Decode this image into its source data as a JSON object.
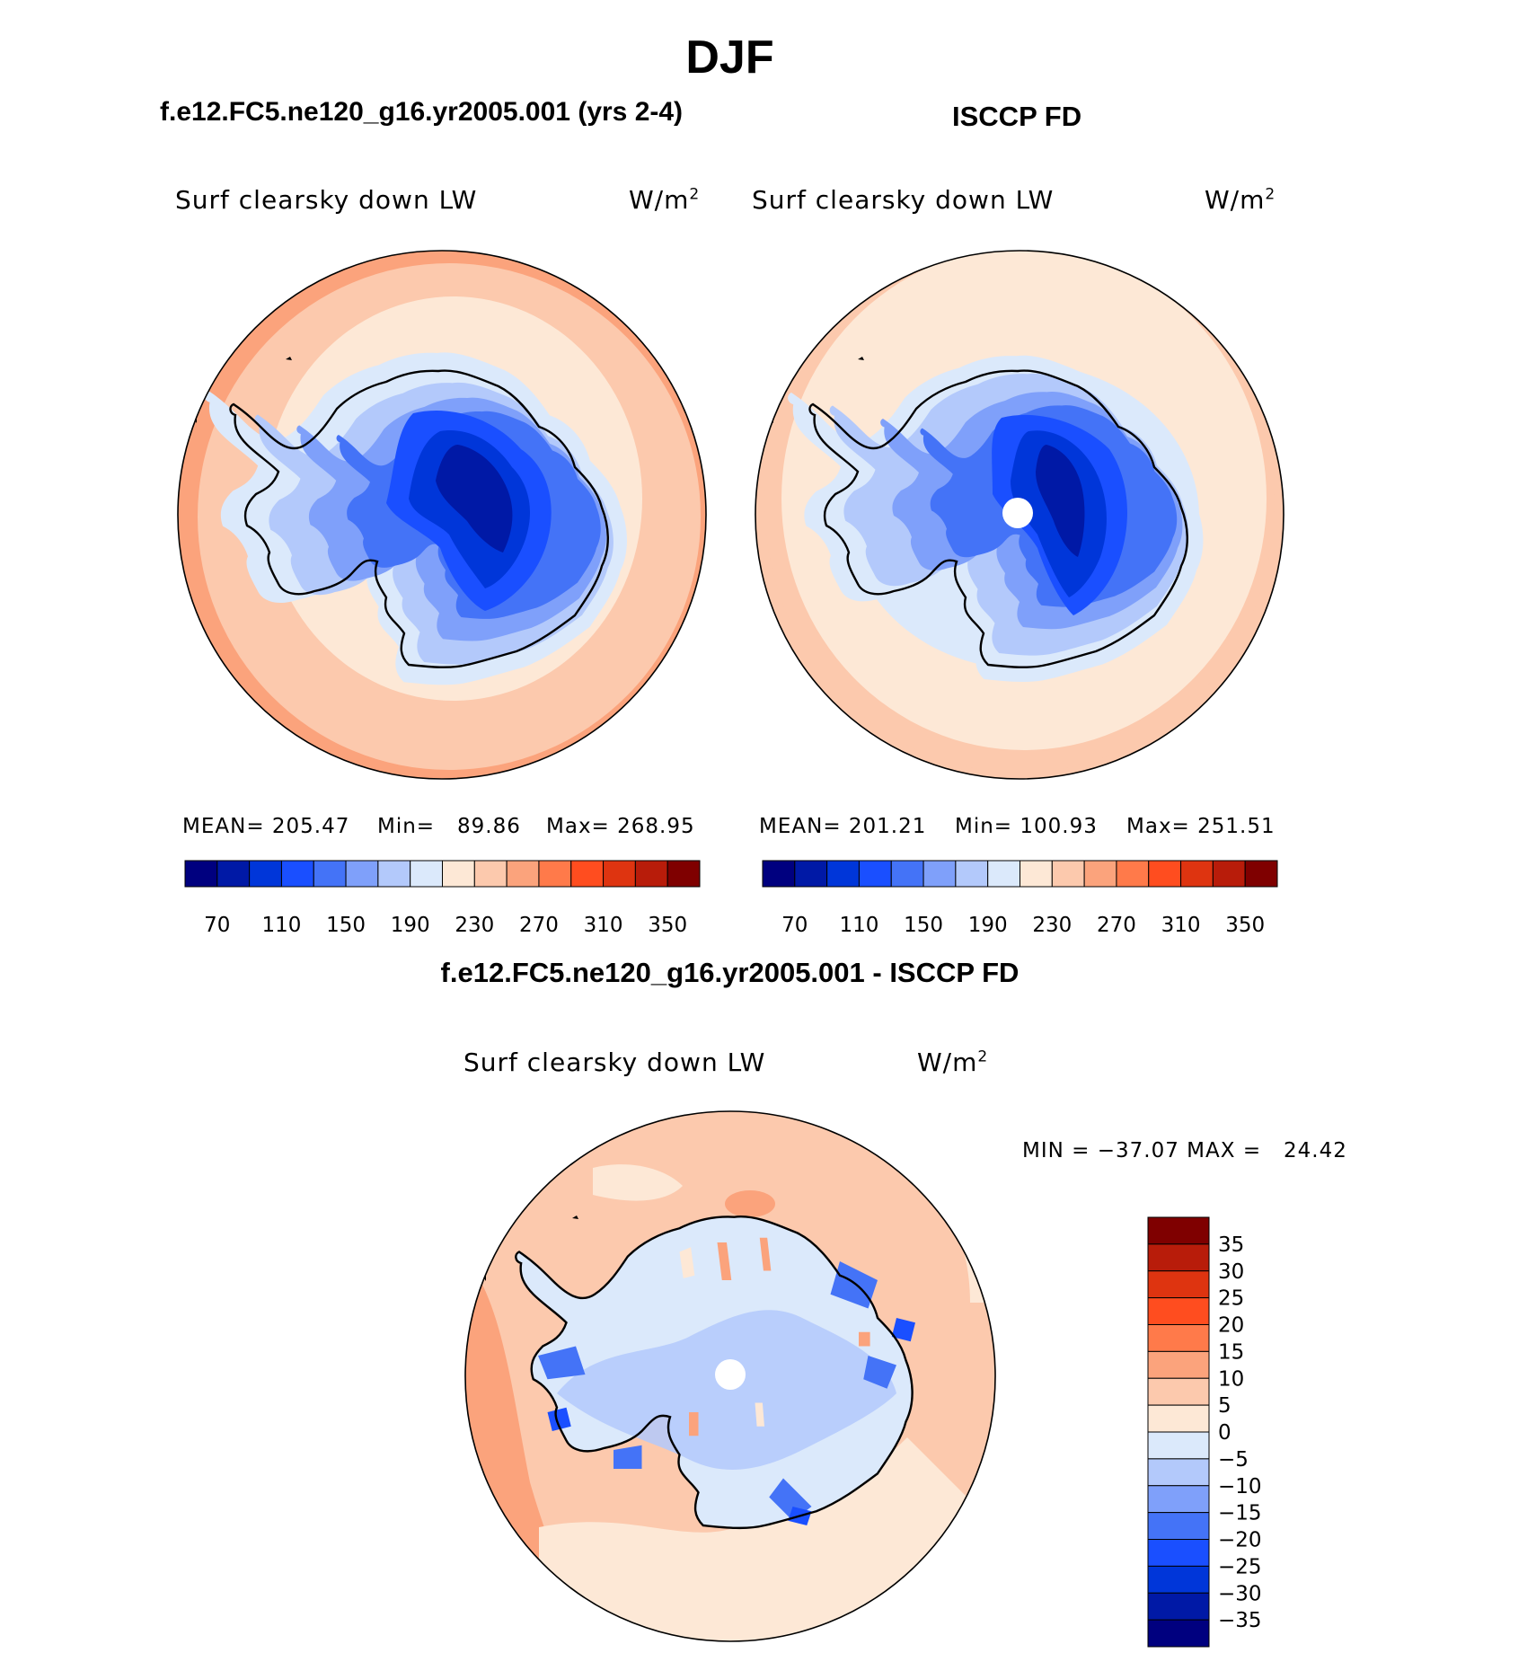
{
  "page_title": "DJF",
  "panels": {
    "model": {
      "title": "f.e12.FC5.ne120_g16.yr2005.001 (yrs 2-4)",
      "variable": "Surf clearsky down LW",
      "units_base": "W/m",
      "units_exp": "2",
      "mean_label": "MEAN=",
      "mean": "205.47",
      "min_label": "Min=",
      "min": "89.86",
      "max_label": "Max=",
      "max": "268.95"
    },
    "obs": {
      "title": "ISCCP FD",
      "variable": "Surf clearsky down LW",
      "units_base": "W/m",
      "units_exp": "2",
      "mean_label": "MEAN=",
      "mean": "201.21",
      "min_label": "Min=",
      "min": "100.93",
      "max_label": "Max=",
      "max": "251.51"
    },
    "diff": {
      "title": "f.e12.FC5.ne120_g16.yr2005.001 - ISCCP FD",
      "variable": "Surf clearsky down LW",
      "units_base": "W/m",
      "units_exp": "2",
      "min_label": "MIN =",
      "min": "−37.07",
      "max_label": "MAX =",
      "max": "24.42"
    }
  },
  "chart_data": [
    {
      "type": "heatmap",
      "projection": "south polar stereographic",
      "title": "f.e12.FC5.ne120_g16.yr2005.001 (yrs 2-4)",
      "variable": "Surf clearsky down LW",
      "units": "W/m2",
      "mean": 205.47,
      "min": 89.86,
      "max": 268.95,
      "colorbar_ticks": [
        70,
        110,
        150,
        190,
        230,
        270,
        310,
        350
      ],
      "colorbar_orientation": "horizontal"
    },
    {
      "type": "heatmap",
      "projection": "south polar stereographic",
      "title": "ISCCP FD",
      "variable": "Surf clearsky down LW",
      "units": "W/m2",
      "mean": 201.21,
      "min": 100.93,
      "max": 251.51,
      "colorbar_ticks": [
        70,
        110,
        150,
        190,
        230,
        270,
        310,
        350
      ],
      "colorbar_orientation": "horizontal"
    },
    {
      "type": "heatmap",
      "projection": "south polar stereographic",
      "title": "f.e12.FC5.ne120_g16.yr2005.001 - ISCCP FD",
      "variable": "Surf clearsky down LW",
      "units": "W/m2",
      "min": -37.07,
      "max": 24.42,
      "colorbar_ticks": [
        "35",
        "30",
        "25",
        "20",
        "15",
        "10",
        "5",
        "0",
        "−5",
        "−10",
        "−15",
        "−20",
        "−25",
        "−30",
        "−35"
      ],
      "colorbar_orientation": "vertical"
    }
  ],
  "palette": [
    "#00007f",
    "#0019a6",
    "#0036d9",
    "#1a4fff",
    "#4473f7",
    "#7fa0fa",
    "#b3c9fb",
    "#dbe9fb",
    "#fde8d6",
    "#fcc9ad",
    "#fba37c",
    "#ff7a4a",
    "#ff4d1f",
    "#de3410",
    "#b81c0a",
    "#7f0000"
  ]
}
